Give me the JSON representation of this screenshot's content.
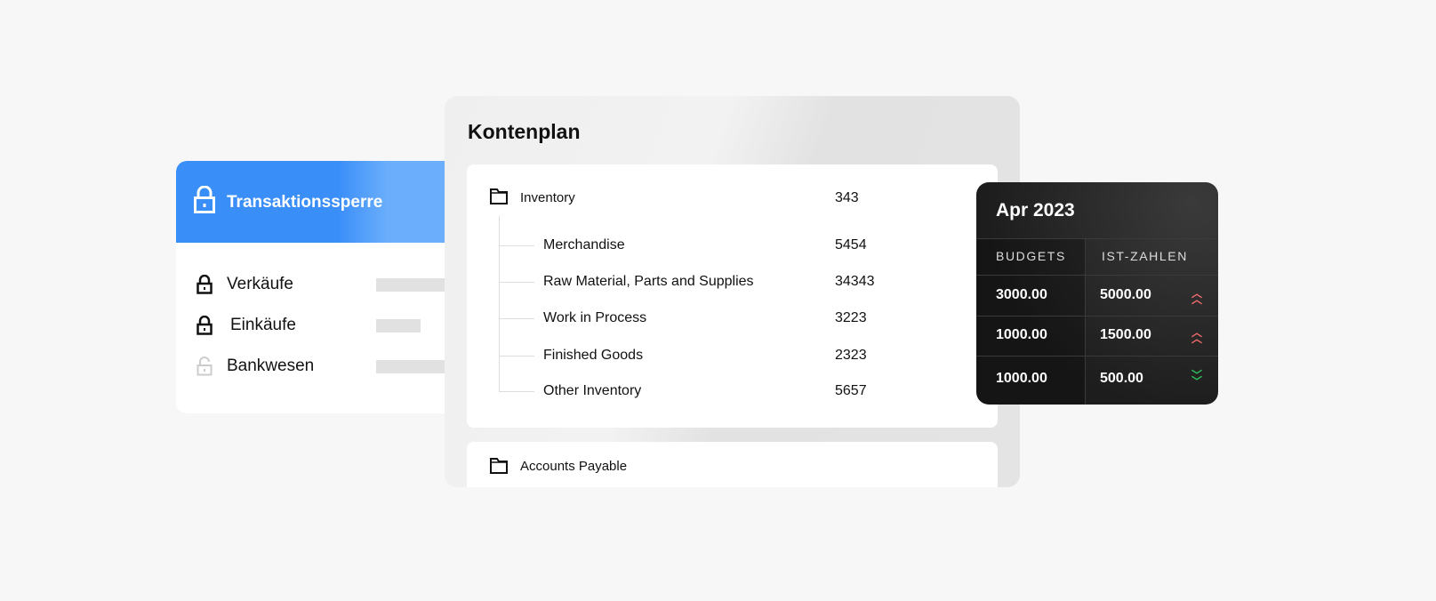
{
  "lock_panel": {
    "title": "Transaktionssperre",
    "items": [
      {
        "label": "Verkäufe",
        "locked": true
      },
      {
        "label": "Einkäufe",
        "locked": true
      },
      {
        "label": "Bankwesen",
        "locked": false
      }
    ]
  },
  "chart_of_accounts": {
    "title": "Kontenplan",
    "groups": [
      {
        "name": "Inventory",
        "value": "343",
        "children": [
          {
            "name": "Merchandise",
            "value": "5454"
          },
          {
            "name": "Raw Material, Parts and Supplies",
            "value": "34343"
          },
          {
            "name": "Work in Process",
            "value": "3223"
          },
          {
            "name": "Finished Goods",
            "value": "2323"
          },
          {
            "name": "Other Inventory",
            "value": "5657"
          }
        ]
      },
      {
        "name": "Accounts Payable"
      }
    ]
  },
  "budget": {
    "title": "Apr 2023",
    "headers": [
      "BUDGETS",
      "IST-ZAHLEN"
    ],
    "rows": [
      {
        "budget": "3000.00",
        "actual": "5000.00",
        "trend": "up"
      },
      {
        "budget": "1000.00",
        "actual": "1500.00",
        "trend": "up"
      },
      {
        "budget": "1000.00",
        "actual": "500.00",
        "trend": "down"
      }
    ],
    "colors": {
      "up": "#f26b6b",
      "down": "#2fc25b"
    }
  }
}
